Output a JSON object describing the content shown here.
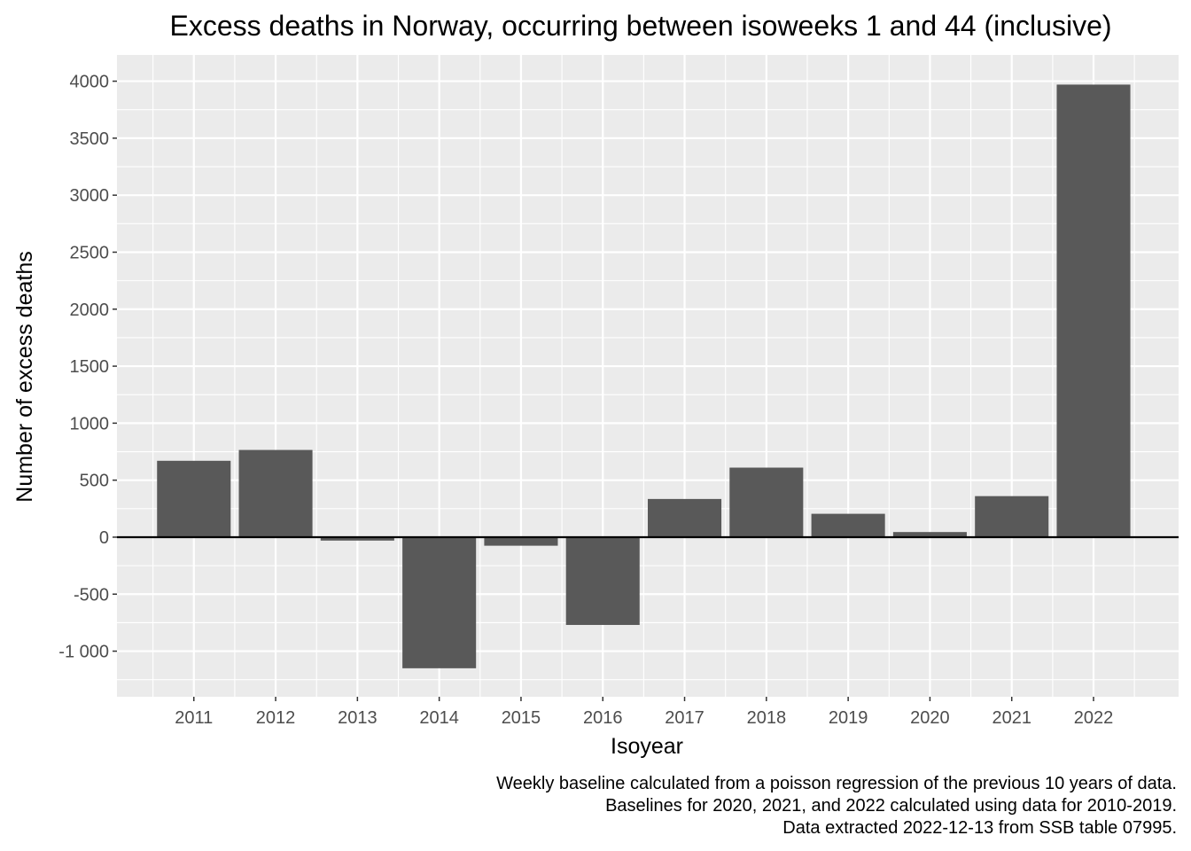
{
  "chart_data": {
    "type": "bar",
    "title": "Excess deaths in Norway, occurring between isoweeks 1 and 44 (inclusive)",
    "xlabel": "Isoyear",
    "ylabel": "Number of excess deaths",
    "categories": [
      "2011",
      "2012",
      "2013",
      "2014",
      "2015",
      "2016",
      "2017",
      "2018",
      "2019",
      "2020",
      "2021",
      "2022"
    ],
    "values": [
      670,
      765,
      -30,
      -1150,
      -75,
      -770,
      335,
      610,
      205,
      45,
      360,
      3970
    ],
    "ylim": [
      -1400,
      4230
    ],
    "xlim": [
      0.06,
      13.04
    ],
    "yticks": [
      -1000,
      -500,
      0,
      500,
      1000,
      1500,
      2000,
      2500,
      3000,
      3500,
      4000
    ],
    "ytick_labels": [
      "-1 000",
      "-500",
      "0",
      "500",
      "1000",
      "1500",
      "2000",
      "2500",
      "3000",
      "3500",
      "4000"
    ],
    "grid": true,
    "reference_line": 0,
    "colors": {
      "bar": "#595959",
      "panel": "#ebebeb",
      "grid": "#ffffff",
      "reference_line": "#000000"
    },
    "caption": [
      "Weekly baseline calculated from a poisson regression of the previous 10 years of data.",
      "Baselines for 2020, 2021, and 2022 calculated using data for 2010-2019.",
      "Data extracted 2022-12-13 from SSB table 07995."
    ]
  }
}
